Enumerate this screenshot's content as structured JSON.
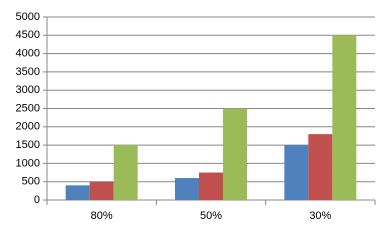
{
  "chart_data": {
    "type": "bar",
    "categories": [
      "80%",
      "50%",
      "30%"
    ],
    "series": [
      {
        "color": "#4f81bd",
        "values": [
          400,
          600,
          1500
        ]
      },
      {
        "color": "#c0504d",
        "values": [
          500,
          750,
          1800
        ]
      },
      {
        "color": "#9bbb59",
        "values": [
          1500,
          2500,
          4500
        ]
      }
    ],
    "ylim": [
      0,
      5000
    ],
    "yticks": [
      0,
      500,
      1000,
      1500,
      2000,
      2500,
      3000,
      3500,
      4000,
      4500,
      5000
    ],
    "grid": true
  }
}
